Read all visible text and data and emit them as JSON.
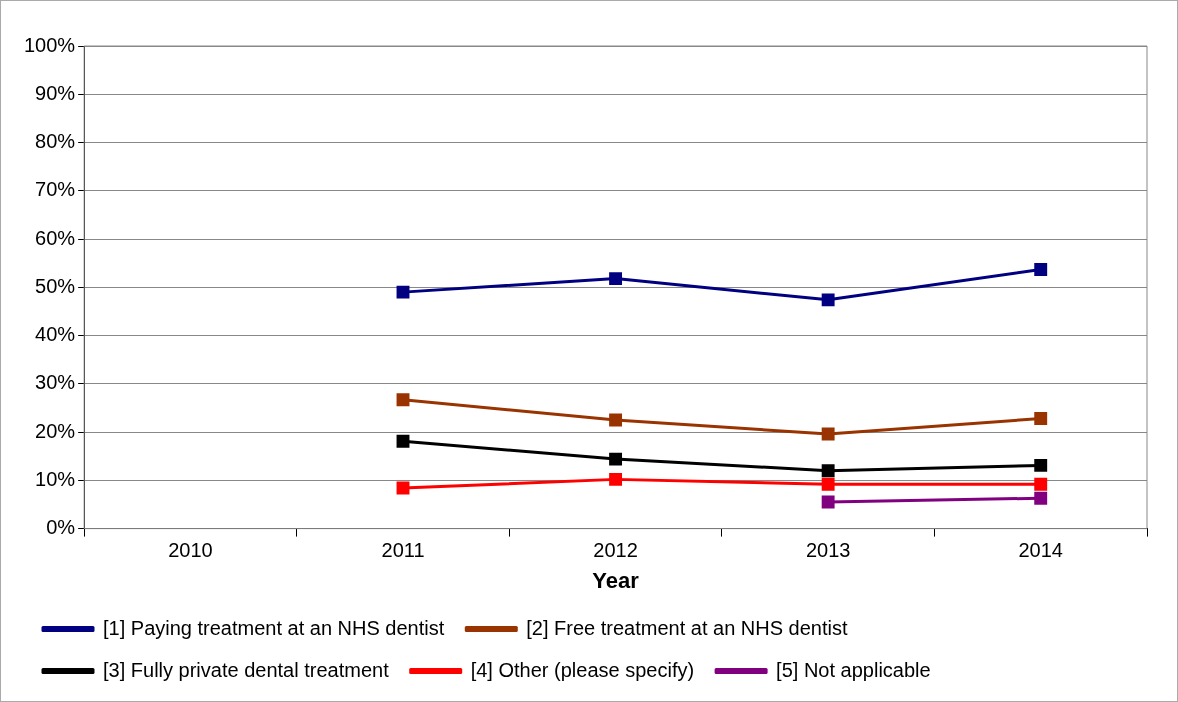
{
  "chart_data": {
    "type": "line",
    "xlabel": "Year",
    "categories": [
      "2010",
      "2011",
      "2012",
      "2013",
      "2014"
    ],
    "ylim": [
      0,
      100
    ],
    "yticks": [
      {
        "value": 0,
        "label": "0%"
      },
      {
        "value": 10,
        "label": "10%"
      },
      {
        "value": 20,
        "label": "20%"
      },
      {
        "value": 30,
        "label": "30%"
      },
      {
        "value": 40,
        "label": "40%"
      },
      {
        "value": 50,
        "label": "50%"
      },
      {
        "value": 60,
        "label": "60%"
      },
      {
        "value": 70,
        "label": "70%"
      },
      {
        "value": 80,
        "label": "80%"
      },
      {
        "value": 90,
        "label": "90%"
      },
      {
        "value": 100,
        "label": "100%"
      }
    ],
    "grid": "y",
    "legend": "bottom",
    "marker": "square",
    "line_style": "solid",
    "series": [
      {
        "name": "[1] Paying treatment at an NHS dentist",
        "color": "#000080",
        "values": [
          null,
          49,
          51.8,
          47.4,
          53.7
        ]
      },
      {
        "name": "[2] Free treatment at an NHS dentist",
        "color": "#993300",
        "values": [
          null,
          26.7,
          22.5,
          19.6,
          22.8
        ]
      },
      {
        "name": "[3] Fully private dental treatment",
        "color": "#000000",
        "values": [
          null,
          18.1,
          14.4,
          12,
          13.1
        ]
      },
      {
        "name": "[4] Other (please specify)",
        "color": "#ff0000",
        "values": [
          null,
          8.4,
          10.2,
          9.2,
          9.2
        ]
      },
      {
        "name": "[5] Not applicable",
        "color": "#800080",
        "values": [
          null,
          null,
          null,
          5.5,
          6.3
        ]
      }
    ]
  }
}
